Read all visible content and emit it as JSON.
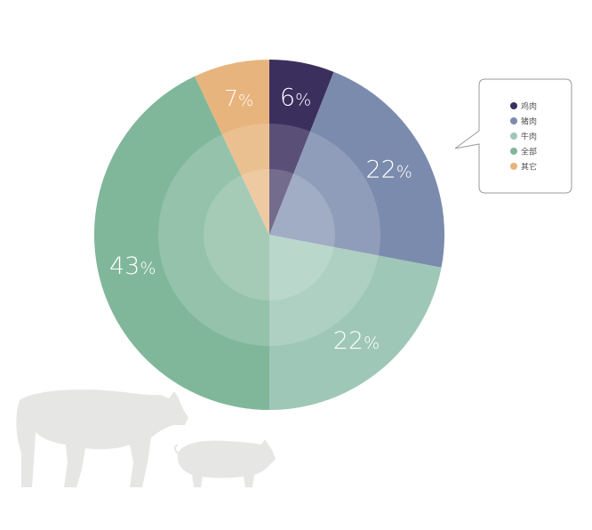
{
  "chart_data": {
    "type": "pie",
    "title": "",
    "categories": [
      "鸡肉",
      "猪肉",
      "牛肉",
      "全部",
      "其它"
    ],
    "values": [
      6,
      22,
      22,
      43,
      7
    ],
    "labels": [
      "6%",
      "22%",
      "22%",
      "43%",
      "7%"
    ],
    "colors": [
      "#3b2f5e",
      "#7b8bad",
      "#9ec7b7",
      "#80b79a",
      "#e8b47d"
    ],
    "legend_position": "right (callout box)"
  },
  "legend": {
    "items": [
      {
        "label": "鸡肉",
        "color": "#3b2f5e"
      },
      {
        "label": "猪肉",
        "color": "#7b8bad"
      },
      {
        "label": "牛肉",
        "color": "#9ec7b7"
      },
      {
        "label": "全部",
        "color": "#80b79a"
      },
      {
        "label": "其它",
        "color": "#e8b47d"
      }
    ]
  },
  "decor": {
    "silhouettes": [
      "cow-silhouette",
      "pig-silhouette"
    ],
    "silhouette_color": "#e6e6e4"
  }
}
